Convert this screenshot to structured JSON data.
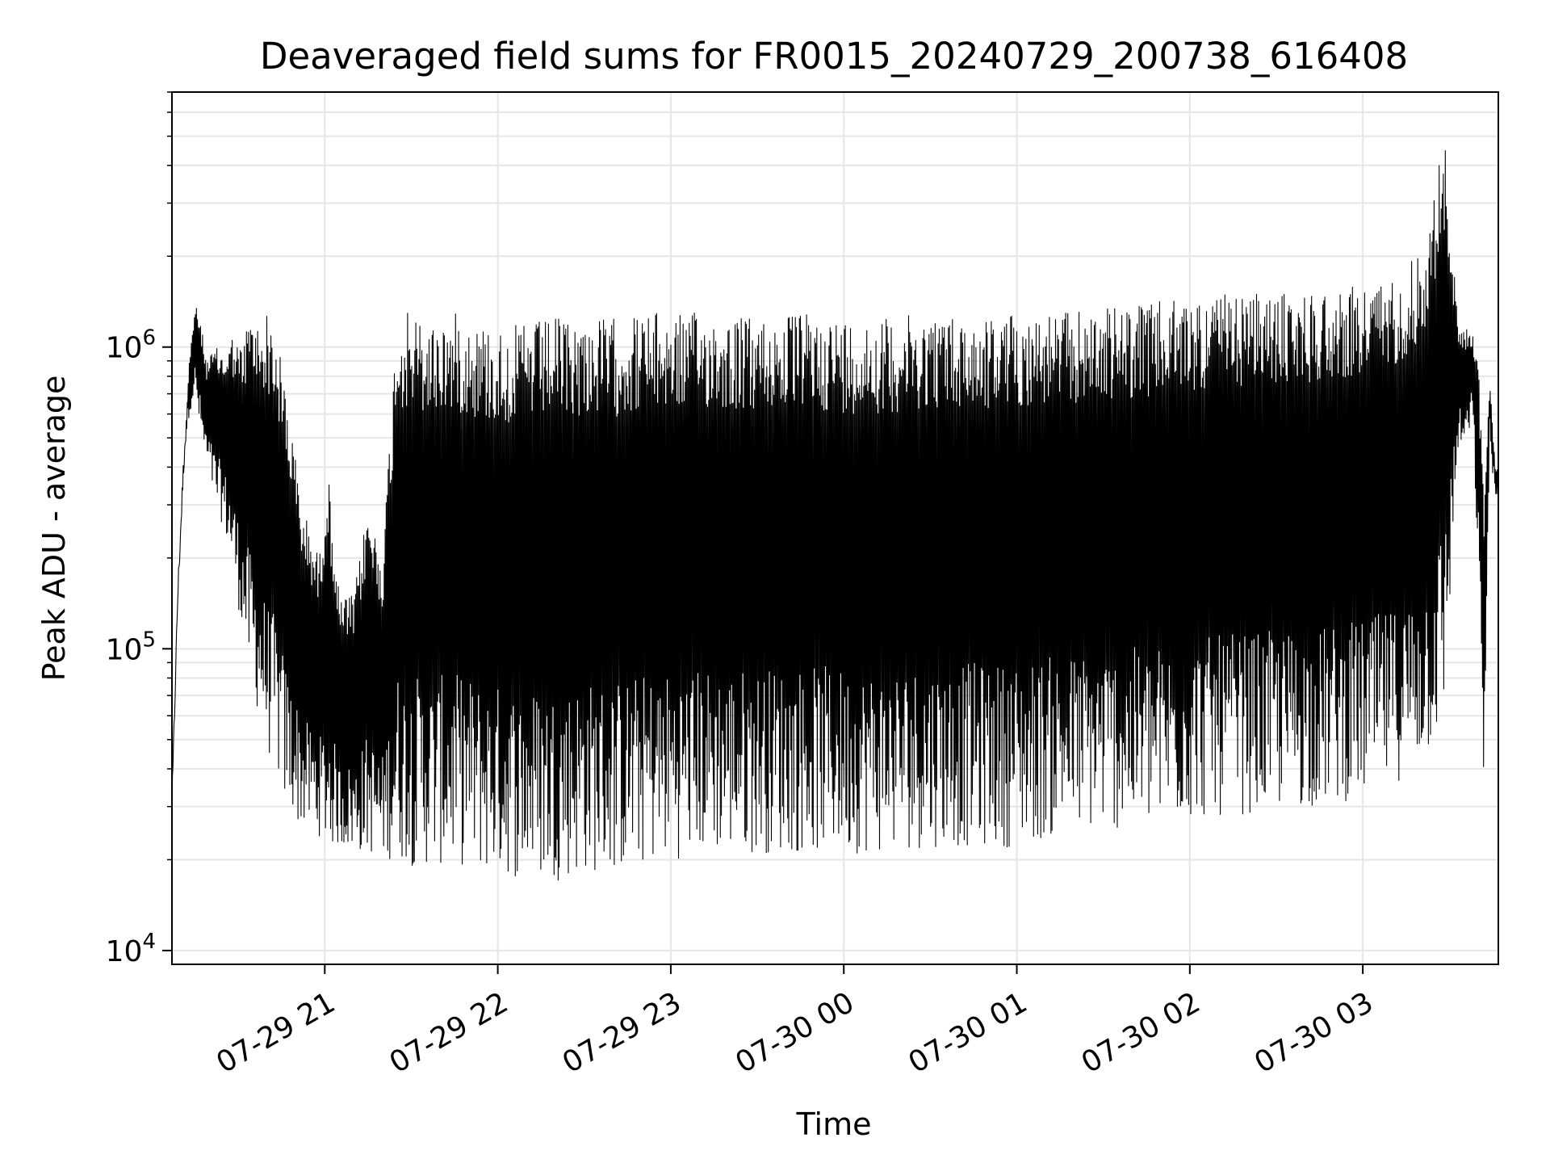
{
  "chart_data": {
    "type": "line",
    "title": "Deaveraged field sums for FR0015_20240729_200738_616408",
    "xlabel": "Time",
    "ylabel": "Peak ADU - average",
    "yscale": "log",
    "ylim": [
      9000,
      7000000
    ],
    "xlim": [
      "2024-07-29 20:07",
      "2024-07-30 03:47"
    ],
    "grid": true,
    "line_color": "#000000",
    "x_ticks": [
      {
        "value": "2024-07-29 21:00",
        "label": "07-29 21"
      },
      {
        "value": "2024-07-29 22:00",
        "label": "07-29 22"
      },
      {
        "value": "2024-07-29 23:00",
        "label": "07-29 23"
      },
      {
        "value": "2024-07-30 00:00",
        "label": "07-30 00"
      },
      {
        "value": "2024-07-30 01:00",
        "label": "07-30 01"
      },
      {
        "value": "2024-07-30 02:00",
        "label": "07-30 02"
      },
      {
        "value": "2024-07-30 03:00",
        "label": "07-30 03"
      }
    ],
    "y_ticks": [
      {
        "value": 10000,
        "label": "10",
        "exp": "4"
      },
      {
        "value": 100000,
        "label": "10",
        "exp": "5"
      },
      {
        "value": 1000000,
        "label": "10",
        "exp": "6"
      }
    ],
    "series": [
      {
        "note_points": "x as 2024-07-29/30 HH:MM, y in ADU; upper and lower envelope samples of a dense oscillating signal",
        "x": [
          "2024-07-29 20:07",
          "2024-07-29 20:09",
          "2024-07-29 20:11",
          "2024-07-29 20:13",
          "2024-07-29 20:15",
          "2024-07-29 20:17",
          "2024-07-29 20:19",
          "2024-07-29 20:22",
          "2024-07-29 20:25",
          "2024-07-29 20:28",
          "2024-07-29 20:31",
          "2024-07-29 20:34",
          "2024-07-29 20:37",
          "2024-07-29 20:40",
          "2024-07-29 20:43",
          "2024-07-29 20:46",
          "2024-07-29 20:49",
          "2024-07-29 20:52",
          "2024-07-29 20:55",
          "2024-07-29 20:58",
          "2024-07-29 21:01",
          "2024-07-29 21:05",
          "2024-07-29 21:10",
          "2024-07-29 21:15",
          "2024-07-29 21:20",
          "2024-07-29 21:25",
          "2024-07-29 21:30",
          "2024-07-29 21:35",
          "2024-07-29 21:40",
          "2024-07-29 21:45",
          "2024-07-29 21:50",
          "2024-07-29 21:55",
          "2024-07-29 22:00",
          "2024-07-29 22:10",
          "2024-07-29 22:20",
          "2024-07-29 22:30",
          "2024-07-29 22:40",
          "2024-07-29 22:50",
          "2024-07-29 23:00",
          "2024-07-29 23:15",
          "2024-07-29 23:30",
          "2024-07-29 23:45",
          "2024-07-30 00:00",
          "2024-07-30 00:15",
          "2024-07-30 00:30",
          "2024-07-30 00:45",
          "2024-07-30 01:00",
          "2024-07-30 01:15",
          "2024-07-30 01:30",
          "2024-07-30 01:45",
          "2024-07-30 02:00",
          "2024-07-30 02:15",
          "2024-07-30 02:30",
          "2024-07-30 02:45",
          "2024-07-30 03:00",
          "2024-07-30 03:10",
          "2024-07-30 03:18",
          "2024-07-30 03:23",
          "2024-07-30 03:28",
          "2024-07-30 03:33",
          "2024-07-30 03:36",
          "2024-07-30 03:38",
          "2024-07-30 03:40",
          "2024-07-30 03:42",
          "2024-07-30 03:44",
          "2024-07-30 03:46"
        ],
        "y_high": [
          30000,
          150000,
          400000,
          900000,
          1400000,
          1200000,
          900000,
          1000000,
          950000,
          1100000,
          1000000,
          1300000,
          1200000,
          1300000,
          1100000,
          800000,
          500000,
          300000,
          250000,
          200000,
          400000,
          150000,
          150000,
          300000,
          200000,
          1300000,
          1300000,
          1200000,
          1250000,
          1300000,
          1250000,
          1200000,
          1150000,
          1200000,
          1250000,
          1250000,
          1250000,
          1300000,
          1300000,
          1300000,
          1250000,
          1300000,
          1250000,
          1250000,
          1300000,
          1250000,
          1300000,
          1300000,
          1350000,
          1400000,
          1450000,
          1500000,
          1500000,
          1550000,
          1600000,
          1700000,
          2000000,
          2500000,
          5500000,
          1200000,
          1150000,
          1100000,
          1000000,
          300000,
          800000,
          400000
        ],
        "y_low": [
          30000,
          150000,
          400000,
          600000,
          700000,
          500000,
          400000,
          300000,
          250000,
          180000,
          120000,
          80000,
          60000,
          45000,
          40000,
          30000,
          28000,
          25000,
          25000,
          24000,
          22000,
          22000,
          21000,
          21000,
          20000,
          20000,
          19000,
          19000,
          19000,
          19000,
          19000,
          18000,
          18000,
          17000,
          17000,
          18000,
          18000,
          19000,
          20000,
          21000,
          21000,
          21000,
          21000,
          21000,
          22000,
          22000,
          22000,
          24000,
          25000,
          25000,
          27000,
          28000,
          29000,
          30000,
          32000,
          35000,
          40000,
          45000,
          55000,
          450000,
          450000,
          600000,
          180000,
          33000,
          500000,
          300000
        ]
      }
    ]
  }
}
